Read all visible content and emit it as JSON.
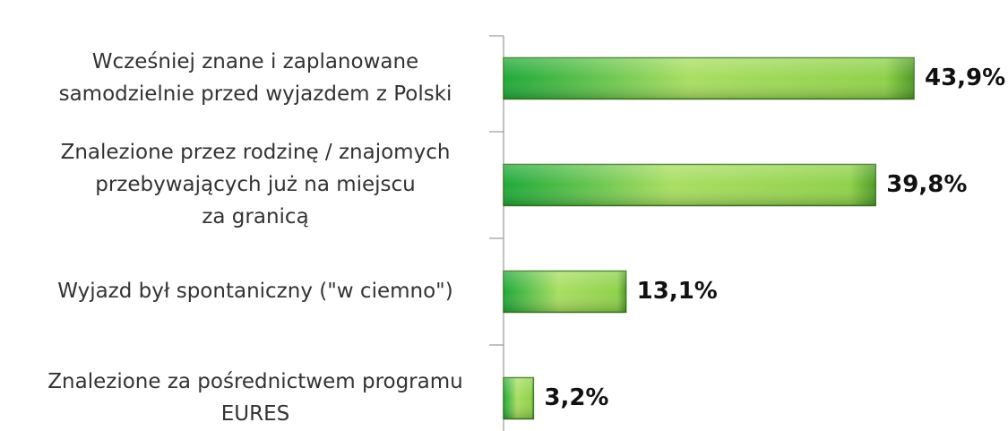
{
  "chart_data": {
    "type": "bar",
    "orientation": "horizontal",
    "categories": [
      [
        "Wcześniej znane i zaplanowane",
        "samodzielnie przed wyjazdem z Polski"
      ],
      [
        "Znalezione przez rodzinę / znajomych",
        "przebywających już na miejscu",
        "za granicą"
      ],
      [
        "Wyjazd był spontaniczny (\"w ciemno\")"
      ],
      [
        "Znalezione za pośrednictwem programu",
        "EURES"
      ]
    ],
    "values": [
      43.9,
      39.8,
      13.1,
      3.2
    ],
    "value_labels": [
      "43,9%",
      "39,8%",
      "13,1%",
      "3,2%"
    ],
    "color": "#4cc23a"
  }
}
